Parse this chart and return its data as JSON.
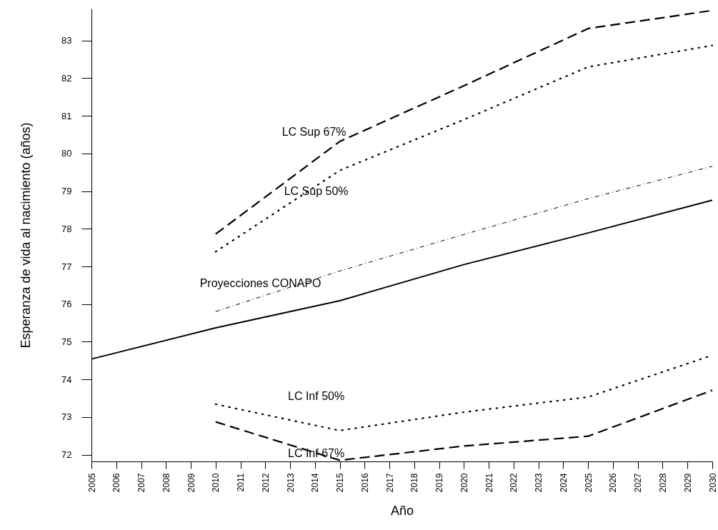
{
  "chart_data": {
    "type": "line",
    "xlabel": "Año",
    "ylabel": "Esperanza de vida al nacimiento (años)",
    "x": [
      2005,
      2010,
      2015,
      2020,
      2025,
      2030
    ],
    "series": [
      {
        "name": "Proyecciones CONAPO",
        "color": "#000000",
        "line_style": "solid",
        "values": [
          74.54,
          75.37,
          76.09,
          77.05,
          77.89,
          78.76
        ]
      },
      {
        "color": "#000000",
        "line_style": "dashdot",
        "values": [
          null,
          75.8,
          76.88,
          77.85,
          78.8,
          79.66
        ]
      },
      {
        "name": "LC Sup 67%",
        "color": "#000000",
        "line_style": "dashed",
        "values": [
          null,
          77.86,
          80.32,
          81.8,
          83.32,
          83.8
        ]
      },
      {
        "name": "LC Sup 50%",
        "color": "#000000",
        "line_style": "dotted",
        "values": [
          null,
          77.39,
          79.55,
          80.9,
          82.3,
          82.87
        ]
      },
      {
        "name": "LC Inf 50%",
        "color": "#000000",
        "line_style": "dotted",
        "values": [
          null,
          73.34,
          72.64,
          73.13,
          73.53,
          74.64
        ]
      },
      {
        "name": "LC Inf 67%",
        "color": "#000000",
        "line_style": "dashed",
        "values": [
          null,
          72.87,
          71.85,
          72.23,
          72.49,
          73.71
        ]
      }
    ],
    "xlim": [
      2005,
      2030
    ],
    "xticks": [
      2005,
      2006,
      2007,
      2008,
      2009,
      2010,
      2011,
      2012,
      2013,
      2014,
      2015,
      2016,
      2017,
      2018,
      2019,
      2020,
      2021,
      2022,
      2023,
      2024,
      2025,
      2026,
      2027,
      2028,
      2029,
      2030
    ],
    "ylim": [
      71.82,
      83.85
    ],
    "yticks": [
      72,
      73,
      74,
      75,
      76,
      77,
      78,
      79,
      80,
      81,
      82,
      83
    ],
    "grid": false,
    "legend": false,
    "marker": "none"
  }
}
